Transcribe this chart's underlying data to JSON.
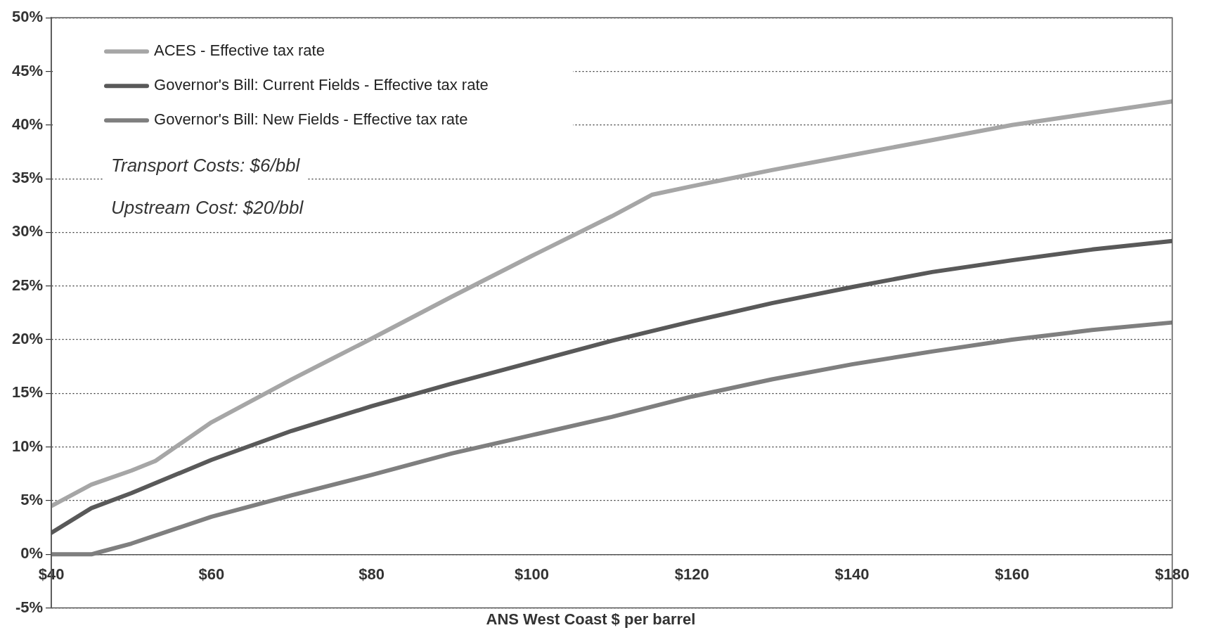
{
  "chart_data": {
    "type": "line",
    "xlabel": "ANS West Coast $ per barrel",
    "xlim": [
      40,
      180
    ],
    "xticks": [
      {
        "value": 40,
        "label": "$40"
      },
      {
        "value": 60,
        "label": "$60"
      },
      {
        "value": 80,
        "label": "$80"
      },
      {
        "value": 100,
        "label": "$100"
      },
      {
        "value": 120,
        "label": "$120"
      },
      {
        "value": 140,
        "label": "$140"
      },
      {
        "value": 160,
        "label": "$160"
      },
      {
        "value": 180,
        "label": "$180"
      }
    ],
    "ylim": [
      -5,
      50
    ],
    "yticks": [
      {
        "value": -5,
        "label": "-5%"
      },
      {
        "value": 0,
        "label": "0%"
      },
      {
        "value": 5,
        "label": "5%"
      },
      {
        "value": 10,
        "label": "10%"
      },
      {
        "value": 15,
        "label": "15%"
      },
      {
        "value": 20,
        "label": "20%"
      },
      {
        "value": 25,
        "label": "25%"
      },
      {
        "value": 30,
        "label": "30%"
      },
      {
        "value": 35,
        "label": "35%"
      },
      {
        "value": 40,
        "label": "40%"
      },
      {
        "value": 45,
        "label": "45%"
      },
      {
        "value": 50,
        "label": "50%"
      }
    ],
    "grid": "y",
    "legend": "top left",
    "marker": "none",
    "line_style": "solid",
    "annotations": [
      "Transport Costs: $6/bbl",
      "Upstream Cost: $20/bbl"
    ],
    "series": [
      {
        "name": "ACES - Effective tax rate",
        "color": "#a6a6a6",
        "x": [
          40,
          45,
          50,
          53,
          60,
          70,
          80,
          90,
          100,
          110,
          115,
          120,
          130,
          140,
          150,
          160,
          170,
          180
        ],
        "values": [
          4.5,
          6.5,
          7.8,
          8.7,
          12.3,
          16.3,
          20.1,
          24,
          27.8,
          31.5,
          33.5,
          34.3,
          35.8,
          37.2,
          38.6,
          40,
          41.1,
          42.2
        ]
      },
      {
        "name": "Governor's Bill: Current Fields - Effective tax rate",
        "color": "#595959",
        "x": [
          40,
          45,
          50,
          60,
          70,
          80,
          90,
          100,
          110,
          120,
          130,
          140,
          150,
          160,
          170,
          180
        ],
        "values": [
          2,
          4.3,
          5.7,
          8.8,
          11.5,
          13.8,
          15.9,
          17.9,
          19.9,
          21.7,
          23.4,
          24.9,
          26.3,
          27.4,
          28.4,
          29.2
        ]
      },
      {
        "name": "Governor's Bill: New Fields - Effective tax rate",
        "color": "#7f7f7f",
        "x": [
          40,
          45,
          46,
          50,
          60,
          70,
          80,
          90,
          100,
          110,
          120,
          130,
          140,
          150,
          160,
          170,
          180
        ],
        "values": [
          0,
          0,
          0.2,
          1,
          3.5,
          5.5,
          7.4,
          9.4,
          11.1,
          12.8,
          14.7,
          16.3,
          17.7,
          18.9,
          20,
          20.9,
          21.6
        ]
      }
    ]
  }
}
